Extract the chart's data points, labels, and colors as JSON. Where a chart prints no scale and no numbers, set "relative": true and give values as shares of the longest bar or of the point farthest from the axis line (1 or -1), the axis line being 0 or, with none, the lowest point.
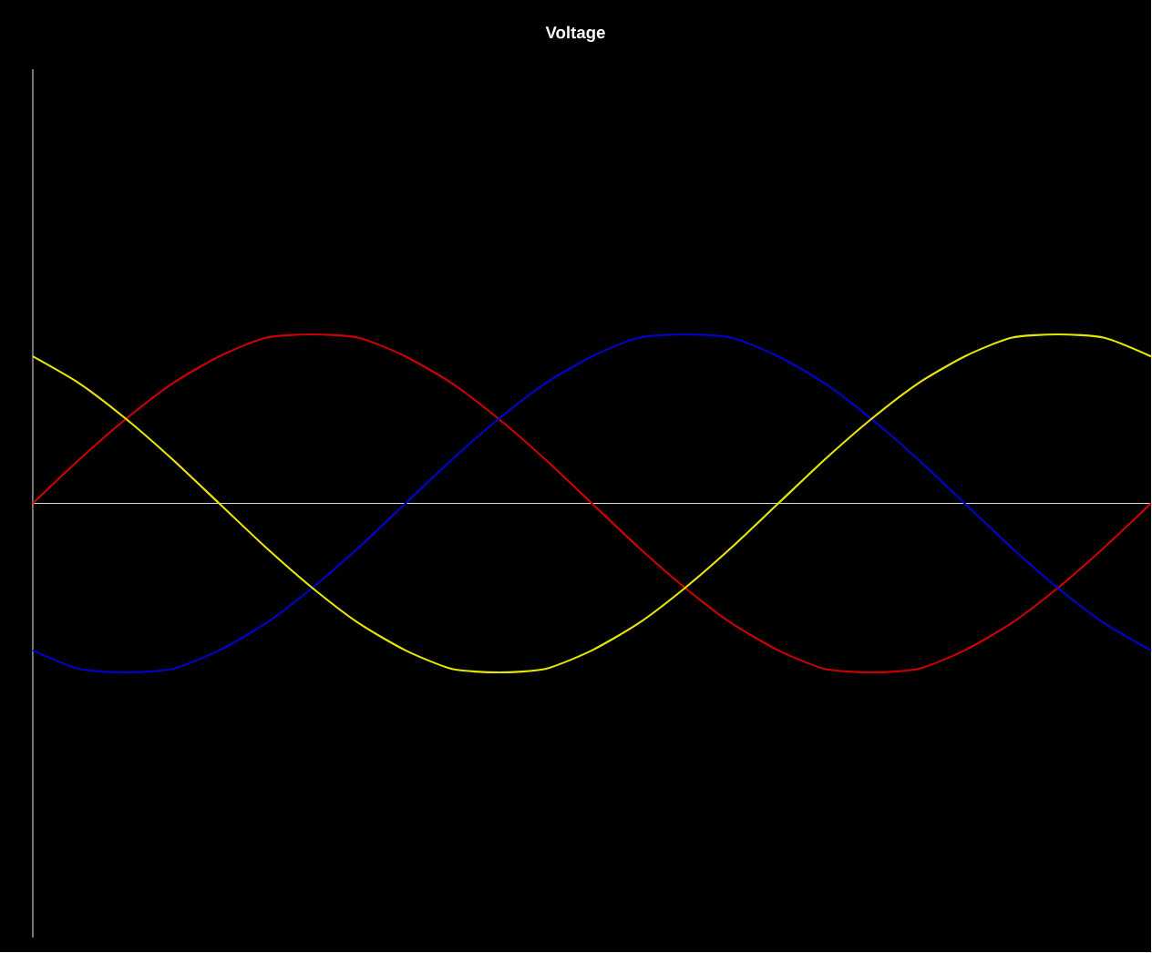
{
  "chart_data": {
    "type": "line",
    "title": "Voltage",
    "relative": true,
    "marker": "none",
    "categories": [
      null,
      null,
      null,
      null,
      null,
      null,
      null,
      null,
      null,
      null,
      null,
      null,
      null,
      null,
      null,
      null,
      null,
      null,
      null,
      null,
      null,
      null,
      null,
      null,
      null
    ],
    "series": [
      {
        "color": "#cc0000",
        "values": [
          0,
          0.26,
          0.5,
          0.71,
          0.87,
          0.98,
          1,
          0.98,
          0.87,
          0.71,
          0.5,
          0.26,
          0,
          -0.26,
          -0.5,
          -0.71,
          -0.87,
          -0.98,
          -1,
          -0.98,
          -0.87,
          -0.71,
          -0.5,
          -0.26,
          0
        ]
      },
      {
        "color": "#0000cc",
        "values": [
          -0.87,
          -0.98,
          -1,
          -0.98,
          -0.87,
          -0.71,
          -0.5,
          -0.26,
          0,
          0.26,
          0.5,
          0.71,
          0.87,
          0.98,
          1,
          0.98,
          0.87,
          0.71,
          0.5,
          0.26,
          0,
          -0.26,
          -0.5,
          -0.71,
          -0.87
        ]
      },
      {
        "color": "#e6e600",
        "values": [
          0.87,
          0.71,
          0.5,
          0.26,
          0,
          -0.26,
          -0.5,
          -0.71,
          -0.87,
          -0.98,
          -1,
          -0.98,
          -0.87,
          -0.71,
          -0.5,
          -0.26,
          0,
          0.26,
          0.5,
          0.71,
          0.87,
          0.98,
          1,
          0.98,
          0.87
        ]
      }
    ]
  }
}
